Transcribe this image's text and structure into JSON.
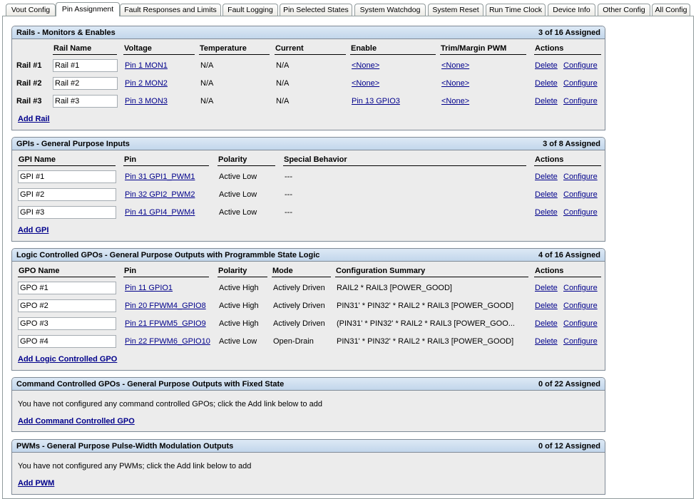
{
  "tabs": [
    {
      "label": "Vout Config"
    },
    {
      "label": "Pin Assignment",
      "active": true
    },
    {
      "label": "Fault Responses and Limits"
    },
    {
      "label": "Fault Logging"
    },
    {
      "label": "Pin Selected States"
    },
    {
      "label": "System Watchdog"
    },
    {
      "label": "System Reset"
    },
    {
      "label": "Run Time Clock"
    },
    {
      "label": "Device Info"
    },
    {
      "label": "Other Config"
    },
    {
      "label": "All Config"
    }
  ],
  "panels": [
    {
      "id": "rails",
      "title": "Rails - Monitors & Enables",
      "count": "3 of 16 Assigned",
      "columns": [
        "",
        "Rail Name",
        "Voltage",
        "Temperature",
        "Current",
        "Enable",
        "Trim/Margin PWM",
        "Actions"
      ],
      "rows": [
        [
          "Rail #1",
          "Rail #1",
          "Pin 1 MON1",
          "N/A",
          "N/A",
          "<None>",
          "<None>",
          "Delete",
          "Configure"
        ],
        [
          "Rail #2",
          "Rail #2",
          "Pin 2 MON2",
          "N/A",
          "N/A",
          "<None>",
          "<None>",
          "Delete",
          "Configure"
        ],
        [
          "Rail #3",
          "Rail #3",
          "Pin 3 MON3",
          "N/A",
          "N/A",
          "Pin 13 GPIO3",
          "<None>",
          "Delete",
          "Configure"
        ]
      ],
      "add": "Add Rail"
    },
    {
      "id": "gpi",
      "title": "GPIs - General Purpose Inputs",
      "count": "3 of 8 Assigned",
      "columns": [
        "GPI Name",
        "Pin",
        "Polarity",
        "Special Behavior",
        "Actions"
      ],
      "rows": [
        [
          "GPI #1",
          "Pin 31 GPI1_PWM1",
          "Active Low",
          "---",
          "Delete",
          "Configure"
        ],
        [
          "GPI #2",
          "Pin 32 GPI2_PWM2",
          "Active Low",
          "---",
          "Delete",
          "Configure"
        ],
        [
          "GPI #3",
          "Pin 41 GPI4_PWM4",
          "Active Low",
          "---",
          "Delete",
          "Configure"
        ]
      ],
      "add": "Add GPI"
    },
    {
      "id": "gpo",
      "title": "Logic Controlled GPOs - General Purpose Outputs with Programmble State Logic",
      "count": "4 of 16 Assigned",
      "columns": [
        "GPO Name",
        "Pin",
        "Polarity",
        "Mode",
        "Configuration Summary",
        "Actions"
      ],
      "rows": [
        [
          "GPO #1",
          "Pin 11 GPIO1",
          "Active High",
          "Actively Driven",
          "RAIL2 * RAIL3 [POWER_GOOD]",
          "Delete",
          "Configure"
        ],
        [
          "GPO #2",
          "Pin 20 FPWM4_GPIO8",
          "Active High",
          "Actively Driven",
          "PIN31' * PIN32' * RAIL2 * RAIL3 [POWER_GOOD]",
          "Delete",
          "Configure"
        ],
        [
          "GPO #3",
          "Pin 21 FPWM5_GPIO9",
          "Active High",
          "Actively Driven",
          "(PIN31' * PIN32' * RAIL2 * RAIL3 [POWER_GOO...",
          "Delete",
          "Configure"
        ],
        [
          "GPO #4",
          "Pin 22 FPWM6_GPIO10",
          "Active Low",
          "Open-Drain",
          "PIN31' * PIN32' * RAIL2 * RAIL3 [POWER_GOOD]",
          "Delete",
          "Configure"
        ]
      ],
      "add": "Add Logic Controlled GPO"
    },
    {
      "id": "cmdgpo",
      "title": "Command Controlled GPOs - General Purpose Outputs with Fixed State",
      "count": "0 of 22 Assigned",
      "message": "You have not configured any command controlled GPOs; click the Add link below to add",
      "add": "Add Command Controlled GPO"
    },
    {
      "id": "pwm",
      "title": "PWMs - General Purpose Pulse-Width Modulation Outputs",
      "count": "0 of 12 Assigned",
      "message": "You have not configured any PWMs; click the Add link below to add",
      "add": "Add PWM"
    }
  ]
}
